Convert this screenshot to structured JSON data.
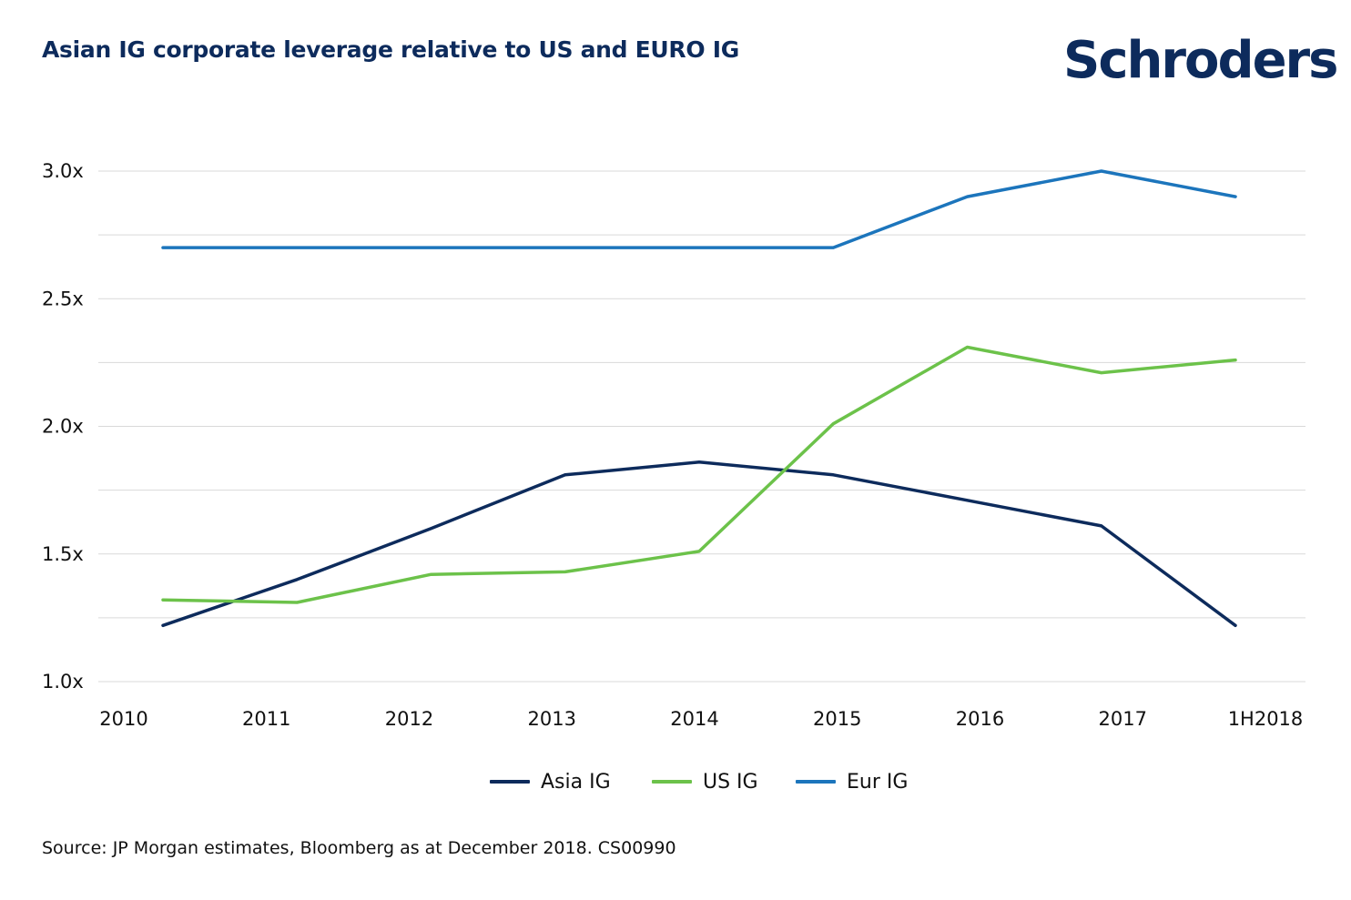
{
  "title": "Asian IG corporate leverage relative to US and EURO IG",
  "logo": {
    "text": "Schroders",
    "color": "#0d2b5c"
  },
  "source": "Source: JP Morgan estimates, Bloomberg as at December 2018. CS00990",
  "chart_data": {
    "type": "line",
    "title": "Asian IG corporate leverage relative to US and EURO IG",
    "xlabel": "",
    "ylabel": "",
    "categories": [
      "2010",
      "2011",
      "2012",
      "2013",
      "2014",
      "2015",
      "2016",
      "2017",
      "1H2018"
    ],
    "y_ticks": [
      1.0,
      1.5,
      2.0,
      2.5,
      3.0
    ],
    "y_tick_labels": [
      "1.0x",
      "1.5x",
      "2.0x",
      "2.5x",
      "3.0x"
    ],
    "ylim": [
      1.0,
      3.0
    ],
    "grid": true,
    "legend_position": "bottom",
    "series": [
      {
        "name": "Asia IG",
        "color": "#0d2b5c",
        "values": [
          1.22,
          1.4,
          1.6,
          1.81,
          1.86,
          1.81,
          1.71,
          1.61,
          1.22
        ]
      },
      {
        "name": "US IG",
        "color": "#6cc24a",
        "values": [
          1.32,
          1.31,
          1.42,
          1.43,
          1.51,
          2.01,
          2.31,
          2.21,
          2.26
        ]
      },
      {
        "name": "Eur IG",
        "color": "#1c75bc",
        "values": [
          2.7,
          2.7,
          2.7,
          2.7,
          2.7,
          2.7,
          2.9,
          3.0,
          2.9
        ]
      }
    ]
  }
}
